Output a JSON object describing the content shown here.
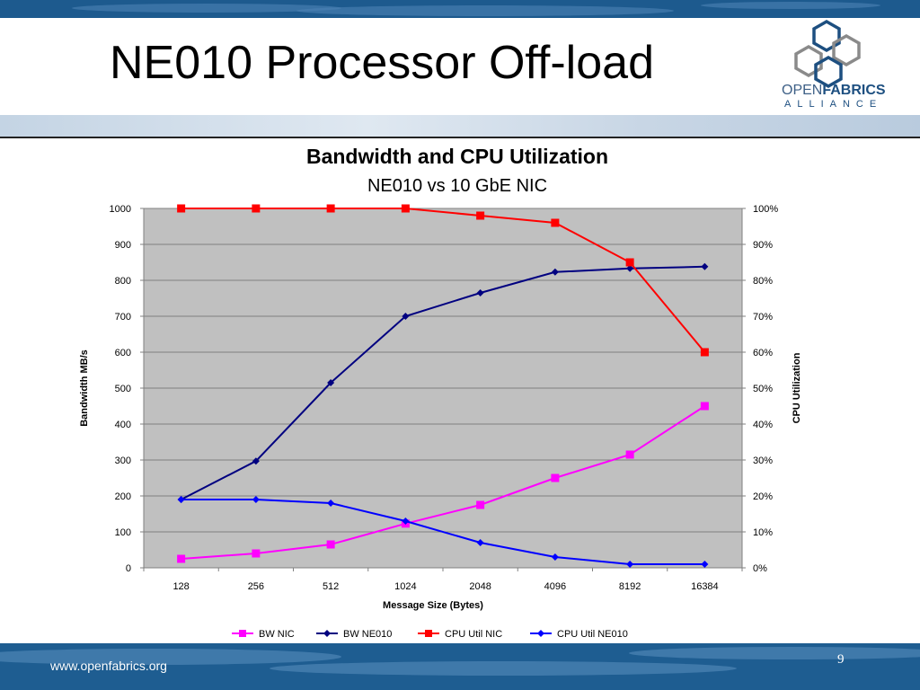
{
  "slide": {
    "title": "NE010 Processor Off-load",
    "footer_url": "www.openfabrics.org",
    "page_number": "9"
  },
  "logo": {
    "name_light": "OPEN",
    "name_bold": "FABRICS",
    "tagline": "ALLIANCE",
    "color": "#1d4f80"
  },
  "chart_data": {
    "type": "line",
    "title": "Bandwidth and CPU Utilization",
    "subtitle": "NE010 vs 10 GbE NIC",
    "xlabel": "Message Size (Bytes)",
    "ylabel": "Bandwidth MB/s",
    "y2label": "CPU Utilization",
    "categories": [
      "128",
      "256",
      "512",
      "1024",
      "2048",
      "4096",
      "8192",
      "16384"
    ],
    "ylim": [
      0,
      1000
    ],
    "yticks": [
      "0",
      "100",
      "200",
      "300",
      "400",
      "500",
      "600",
      "700",
      "800",
      "900",
      "1000"
    ],
    "y2lim": [
      0,
      100
    ],
    "y2ticks": [
      "0%",
      "10%",
      "20%",
      "30%",
      "40%",
      "50%",
      "60%",
      "70%",
      "80%",
      "90%",
      "100%"
    ],
    "grid": true,
    "legend_position": "bottom",
    "plot_background": "#c0c0c0",
    "series": [
      {
        "name": "BW NIC",
        "axis": "left",
        "marker": "square",
        "color": "#ff00ff",
        "values": [
          25,
          40,
          65,
          123,
          175,
          250,
          315,
          450
        ]
      },
      {
        "name": "BW NE010",
        "axis": "left",
        "marker": "diamond",
        "color": "#000080",
        "values": [
          190,
          297,
          515,
          700,
          765,
          823,
          833,
          838
        ]
      },
      {
        "name": "CPU Util NIC",
        "axis": "right",
        "marker": "square",
        "color": "#ff0000",
        "values": [
          100,
          100,
          100,
          100,
          98,
          96,
          85,
          60
        ]
      },
      {
        "name": "CPU Util NE010",
        "axis": "right",
        "marker": "diamond",
        "color": "#0000ff",
        "values": [
          19,
          19,
          18,
          13,
          7,
          3,
          1,
          1
        ]
      }
    ]
  }
}
